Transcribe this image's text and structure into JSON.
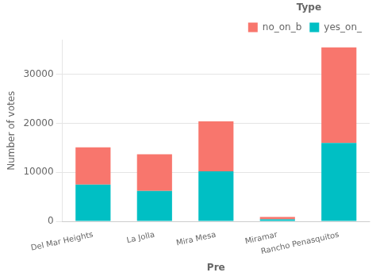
{
  "chart_data": {
    "type": "bar",
    "stacked": true,
    "categories": [
      "Del Mar Heights",
      "La Jolla",
      "Mira Mesa",
      "Miramar",
      "Rancho Penasquitos"
    ],
    "series": [
      {
        "name": "yes_on_",
        "color": "#00BFC4",
        "values": [
          7500,
          6200,
          10200,
          400,
          16000
        ]
      },
      {
        "name": "no_on_b",
        "color": "#F8766D",
        "values": [
          7600,
          7500,
          10200,
          500,
          19500
        ]
      }
    ],
    "legend_title": "Type",
    "xlabel": "Pre",
    "ylabel": "Number of votes",
    "ylim": [
      0,
      37000
    ],
    "yticks": [
      0,
      10000,
      20000,
      30000
    ],
    "grid": true,
    "legend": "upper right"
  }
}
